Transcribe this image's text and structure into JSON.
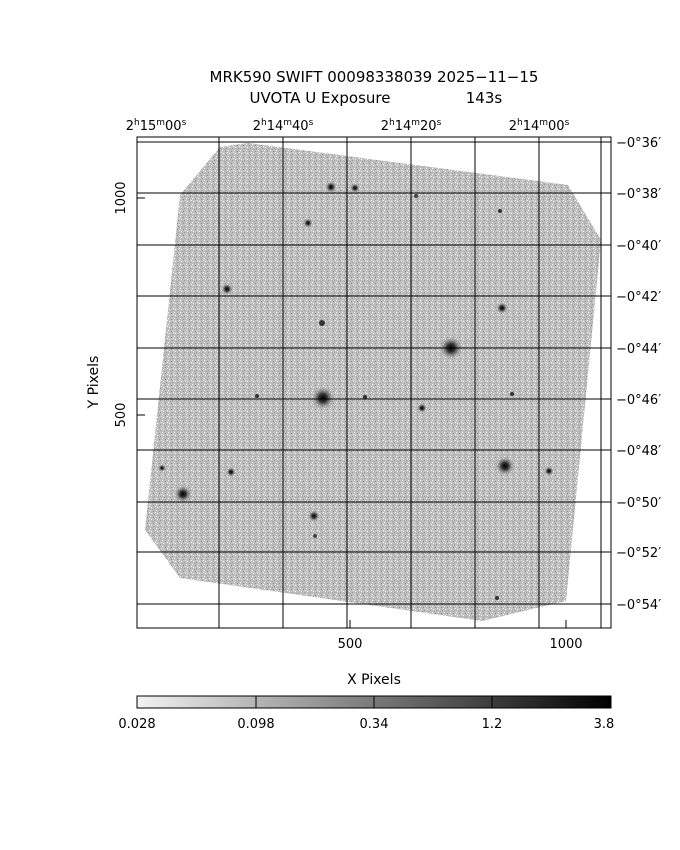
{
  "title": {
    "line1": "MRK590 SWIFT 00098338039 2025−11−15",
    "line2_left": "UVOTA U Exposure",
    "line2_right": "143s"
  },
  "axes": {
    "xlabel": "X Pixels",
    "ylabel": "Y Pixels",
    "x_ticks": [
      "500",
      "1000"
    ],
    "y_ticks": [
      "1000",
      "500"
    ],
    "ra_labels": [
      {
        "h": "2",
        "m": "15",
        "s": "00"
      },
      {
        "h": "2",
        "m": "14",
        "s": "40"
      },
      {
        "h": "2",
        "m": "14",
        "s": "20"
      },
      {
        "h": "2",
        "m": "14",
        "s": "00"
      }
    ],
    "dec_labels": [
      "−0°36′",
      "−0°38′",
      "−0°40′",
      "−0°42′",
      "−0°44′",
      "−0°46′",
      "−0°48′",
      "−0°50′",
      "−0°52′",
      "−0°54′"
    ]
  },
  "colorbar": {
    "labels": [
      "0.028",
      "0.098",
      "0.34",
      "1.2",
      "3.8"
    ],
    "low_color": "#f2f2f2",
    "high_color": "#000000"
  },
  "image": {
    "field_color": "#b4b4b4",
    "background": "#ffffff"
  }
}
